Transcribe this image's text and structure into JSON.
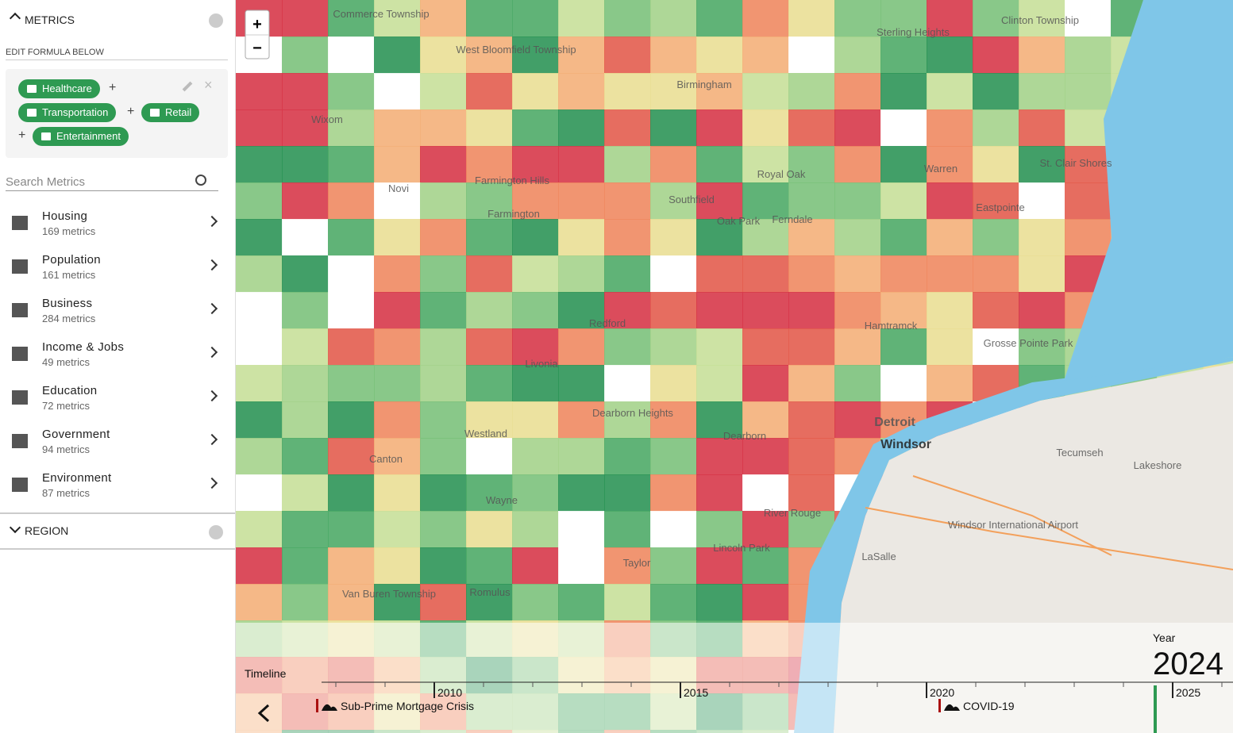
{
  "sidebar": {
    "metrics_header": "METRICS",
    "edit_formula": "EDIT FORMULA BELOW",
    "formula": {
      "chips": [
        "Healthcare",
        "Transportation",
        "Retail",
        "Entertainment"
      ],
      "operators": [
        "+",
        "+",
        "+"
      ]
    },
    "search_placeholder": "Search Metrics",
    "categories": [
      {
        "name": "Housing",
        "count": "169 metrics"
      },
      {
        "name": "Population",
        "count": "161 metrics"
      },
      {
        "name": "Business",
        "count": "284 metrics"
      },
      {
        "name": "Income & Jobs",
        "count": "49 metrics"
      },
      {
        "name": "Education",
        "count": "72 metrics"
      },
      {
        "name": "Government",
        "count": "94 metrics"
      },
      {
        "name": "Environment",
        "count": "87 metrics"
      }
    ],
    "region_header": "REGION"
  },
  "map": {
    "zoom_in": "+",
    "zoom_out": "−",
    "places": [
      "Commerce Township",
      "West Bloomfield Township",
      "Sterling Heights",
      "Clinton Township",
      "Birmingham",
      "Wixom",
      "Farmington Hills",
      "Farmington",
      "Novi",
      "Royal Oak",
      "Warren",
      "St. Clair Shores",
      "Southfield",
      "Oak Park",
      "Ferndale",
      "Eastpointe",
      "Redford",
      "Hamtramck",
      "Grosse Pointe Park",
      "Livonia",
      "Dearborn Heights",
      "Westland",
      "Dearborn",
      "Detroit",
      "Windsor",
      "Tecumseh",
      "Lakeshore",
      "Canton",
      "Wayne",
      "River Rouge",
      "Windsor International Airport",
      "Lincoln Park",
      "Taylor",
      "LaSalle",
      "Romulus",
      "Van Buren Township"
    ]
  },
  "timeline": {
    "label": "Timeline",
    "year_label": "Year",
    "year": "2024",
    "ticks": [
      "2010",
      "2015",
      "2020",
      "2025"
    ],
    "events": [
      "Sub-Prime Mortgage Crisis",
      "COVID-19"
    ]
  }
}
